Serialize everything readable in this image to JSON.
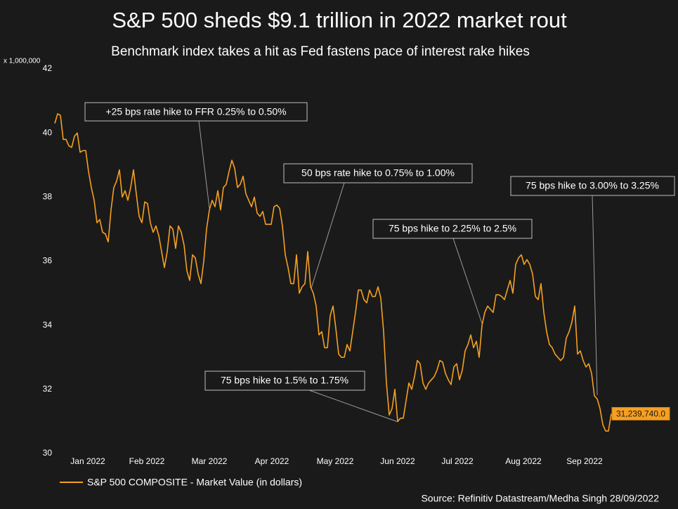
{
  "chart_data": {
    "type": "line",
    "title": "S&P 500 sheds $9.1 trillion in 2022 market rout",
    "subtitle": "Benchmark index takes a hit as Fed fastens pace of interest rake hikes",
    "y_unit_label": "x 1,000,000",
    "source": "Source: Refinitiv Datastream/Medha Singh 28/09/2022",
    "annotations": [
      "+25 bps rate hike to FFR 0.25% to 0.50%",
      "50 bps rate hike to 0.75% to 1.00%",
      "75 bps hike to 2.25% to 2.5%",
      "75 bps hike to 3.00% to 3.25%",
      "75 bps hike to 1.5% to 1.75%"
    ],
    "xlim": [
      0,
      198
    ],
    "xticks": [
      {
        "value": 11.75,
        "label": "Jan 2022"
      },
      {
        "value": 32.75,
        "label": "Feb 2022"
      },
      {
        "value": 55,
        "label": "Mar 2022"
      },
      {
        "value": 77.25,
        "label": "Apr 2022"
      },
      {
        "value": 99.75,
        "label": "May 2022"
      },
      {
        "value": 122,
        "label": "Jun 2022"
      },
      {
        "value": 143.25,
        "label": "Jul 2022"
      },
      {
        "value": 166.75,
        "label": "Aug 2022"
      },
      {
        "value": 188.5,
        "label": "Sep 2022"
      }
    ],
    "ylim": [
      30,
      42
    ],
    "yticks": [
      30,
      32,
      34,
      36,
      38,
      40,
      42
    ],
    "grid": false,
    "legend": "bottom-left",
    "series": [
      {
        "name": "S&P 500 COMPOSITE - Market Value (in dollars)",
        "color": "#f5a021",
        "values": [
          40.3,
          40.6,
          40.55,
          39.8,
          39.8,
          39.6,
          39.55,
          39.9,
          40.0,
          39.4,
          39.45,
          39.45,
          38.8,
          38.3,
          37.9,
          37.2,
          37.3,
          36.9,
          36.85,
          36.6,
          37.6,
          38.3,
          38.5,
          38.85,
          38.0,
          38.2,
          37.9,
          38.3,
          38.85,
          38.1,
          37.4,
          37.2,
          37.85,
          37.8,
          37.2,
          36.9,
          37.1,
          36.8,
          36.3,
          35.8,
          36.3,
          37.1,
          37.0,
          36.4,
          37.1,
          36.9,
          36.5,
          35.7,
          35.4,
          36.2,
          36.1,
          35.6,
          35.3,
          36.0,
          37.0,
          37.6,
          37.9,
          37.7,
          38.2,
          37.6,
          38.3,
          38.4,
          38.8,
          39.15,
          38.9,
          38.3,
          38.4,
          38.65,
          38.1,
          37.9,
          37.7,
          38.0,
          37.5,
          37.4,
          37.55,
          37.15,
          37.15,
          37.15,
          37.7,
          37.75,
          37.65,
          37.1,
          36.2,
          35.8,
          35.3,
          35.3,
          36.2,
          35.0,
          35.2,
          35.3,
          36.3,
          35.2,
          35.0,
          34.6,
          33.7,
          33.8,
          33.3,
          33.3,
          34.3,
          34.6,
          33.9,
          33.1,
          33.0,
          33.0,
          33.4,
          33.2,
          33.8,
          34.4,
          35.1,
          35.1,
          34.8,
          34.7,
          35.1,
          34.9,
          34.9,
          35.2,
          34.85,
          33.8,
          32.2,
          31.2,
          31.4,
          32.0,
          31.0,
          31.1,
          31.1,
          31.65,
          32.2,
          32.0,
          32.4,
          32.9,
          32.8,
          32.2,
          32.0,
          32.2,
          32.3,
          32.4,
          32.6,
          32.9,
          32.85,
          32.5,
          32.3,
          32.15,
          32.7,
          32.8,
          32.3,
          32.6,
          33.2,
          33.4,
          33.7,
          33.3,
          33.5,
          33.0,
          34.0,
          34.4,
          34.6,
          34.5,
          34.4,
          34.95,
          34.95,
          34.9,
          34.8,
          35.1,
          35.4,
          35.0,
          35.9,
          36.1,
          36.2,
          35.9,
          36.05,
          35.9,
          35.6,
          34.9,
          34.8,
          35.3,
          34.4,
          33.8,
          33.4,
          33.3,
          33.1,
          33.0,
          32.9,
          33.0,
          33.6,
          33.8,
          34.1,
          34.6,
          33.1,
          33.2,
          32.9,
          32.7,
          32.8,
          32.5,
          31.8,
          31.7,
          31.4,
          30.9,
          30.7,
          30.7,
          31.23974
        ],
        "value_labels": [
          null,
          null,
          null,
          null,
          null,
          null,
          null,
          null,
          null,
          null,
          null,
          null,
          null,
          null,
          null,
          null,
          null,
          null,
          null,
          null,
          null,
          null,
          null,
          null,
          null,
          null,
          null,
          null,
          null,
          null,
          null,
          null,
          null,
          null,
          null,
          null,
          null,
          null,
          null,
          null,
          null,
          null,
          null,
          null,
          null,
          null,
          null,
          null,
          null,
          null,
          null,
          null,
          null,
          null,
          null,
          null,
          null,
          null,
          null,
          null,
          null,
          null,
          null,
          null,
          null,
          null,
          null,
          null,
          null,
          null,
          null,
          null,
          null,
          null,
          null,
          null,
          null,
          null,
          null,
          null,
          null,
          null,
          null,
          null,
          null,
          null,
          null,
          null,
          null,
          null,
          null,
          null,
          null,
          null,
          null,
          null,
          null,
          null,
          null,
          null,
          null,
          null,
          null,
          null,
          null,
          null,
          null,
          null,
          null,
          null,
          null,
          null,
          null,
          null,
          null,
          null,
          null,
          null,
          null,
          null,
          null,
          null,
          null,
          null,
          null,
          null,
          null,
          null,
          null,
          null,
          null,
          null,
          null,
          null,
          null,
          null,
          null,
          null,
          null,
          null,
          null,
          null,
          null,
          null,
          null,
          null,
          null,
          null,
          null,
          null,
          null,
          null,
          null,
          null,
          null,
          null,
          null,
          null,
          null,
          null,
          null,
          null,
          null,
          null,
          null,
          null,
          null,
          null,
          null,
          null,
          null,
          null,
          null,
          null,
          null,
          null,
          null,
          null,
          null,
          null,
          null,
          null,
          null,
          null,
          null,
          null,
          null,
          null,
          null,
          null,
          null,
          null,
          null,
          null,
          null,
          null,
          null,
          null,
          "31,239,740.0"
        ]
      }
    ]
  }
}
